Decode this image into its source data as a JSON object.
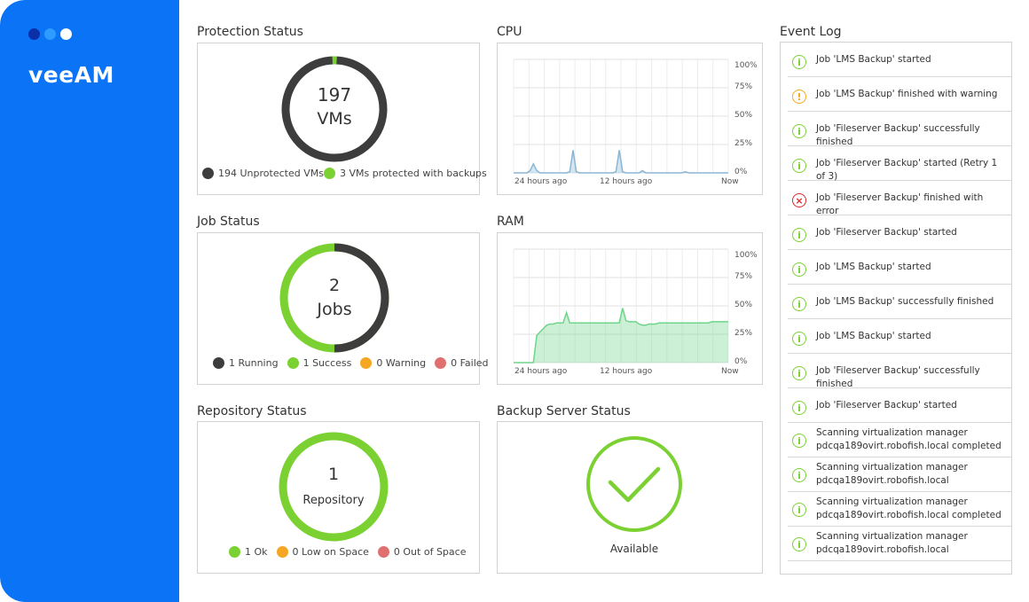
{
  "brand": {
    "logo": "veeAM"
  },
  "window_dots": [
    {
      "name": "dot-dark",
      "color": "#0a2fa8"
    },
    {
      "name": "dot-light",
      "color": "#2d9bff"
    },
    {
      "name": "dot-white",
      "color": "#ffffff"
    }
  ],
  "colors": {
    "accent": "#0b74f6",
    "dark": "#444444",
    "green": "#7bd132",
    "orange": "#f5a623",
    "red": "#e07070",
    "cpu_line": "#8ab6d6",
    "ram_line": "#6ed58a"
  },
  "protection": {
    "title": "Protection Status",
    "count": "197",
    "unit": "VMs",
    "total": 197,
    "protected": 3,
    "legend": [
      {
        "label": "194 Unprotected VMs",
        "color": "#3d3d3d"
      },
      {
        "label": "3 VMs protected with backups",
        "color": "#7bd132"
      }
    ]
  },
  "jobs": {
    "title": "Job Status",
    "count": "2",
    "unit": "Jobs",
    "running": 1,
    "success": 1,
    "legend": [
      {
        "label": "1 Running",
        "color": "#3d3d3d"
      },
      {
        "label": "1 Success",
        "color": "#7bd132"
      },
      {
        "label": "0 Warning",
        "color": "#f5a623"
      },
      {
        "label": "0 Failed",
        "color": "#e07070"
      }
    ]
  },
  "repository": {
    "title": "Repository Status",
    "count": "1",
    "unit": "Repository",
    "legend": [
      {
        "label": "1 Ok",
        "color": "#7bd132"
      },
      {
        "label": "0 Low on Space",
        "color": "#f5a623"
      },
      {
        "label": "0 Out of Space",
        "color": "#e07070"
      }
    ]
  },
  "cpu": {
    "title": "CPU",
    "x_labels": [
      "24 hours ago",
      "12 hours ago",
      "Now"
    ],
    "y_labels": [
      "100%",
      "75%",
      "50%",
      "25%",
      "0%"
    ]
  },
  "ram": {
    "title": "RAM",
    "x_labels": [
      "24 hours ago",
      "12 hours ago",
      "Now"
    ],
    "y_labels": [
      "100%",
      "75%",
      "50%",
      "25%",
      "0%"
    ]
  },
  "server": {
    "title": "Backup Server Status",
    "status": "Available"
  },
  "event_log": {
    "title": "Event Log",
    "events": [
      {
        "type": "info",
        "text": "Job 'LMS Backup' started"
      },
      {
        "type": "warning",
        "text": "Job 'LMS Backup' finished with warning"
      },
      {
        "type": "info",
        "text": "Job 'Fileserver Backup' successfully finished"
      },
      {
        "type": "info",
        "text": "Job 'Fileserver Backup' started (Retry 1 of 3)"
      },
      {
        "type": "error",
        "text": "Job 'Fileserver Backup' finished with error"
      },
      {
        "type": "info",
        "text": "Job 'Fileserver Backup' started"
      },
      {
        "type": "info",
        "text": "Job 'LMS Backup' started"
      },
      {
        "type": "info",
        "text": "Job 'LMS Backup' successfully finished"
      },
      {
        "type": "info",
        "text": "Job 'LMS Backup' started"
      },
      {
        "type": "info",
        "text": "Job 'Fileserver Backup' successfully finished"
      },
      {
        "type": "info",
        "text": "Job 'Fileserver Backup' started"
      },
      {
        "type": "info",
        "text": "Scanning virtualization manager pdcqa189ovirt.robofish.local completed"
      },
      {
        "type": "info",
        "text": "Scanning virtualization manager pdcqa189ovirt.robofish.local"
      },
      {
        "type": "info",
        "text": "Scanning virtualization manager pdcqa189ovirt.robofish.local completed"
      },
      {
        "type": "info",
        "text": "Scanning virtualization manager pdcqa189ovirt.robofish.local"
      }
    ]
  },
  "chart_data": [
    {
      "type": "area",
      "title": "CPU",
      "x_labels": [
        "24 hours ago",
        "12 hours ago",
        "Now"
      ],
      "ylim": [
        0,
        100
      ],
      "y_ticks": [
        "0%",
        "25%",
        "50%",
        "75%",
        "100%"
      ],
      "series": [
        {
          "values": [
            0,
            0,
            0,
            0,
            0,
            2,
            8,
            2,
            0,
            0,
            0,
            0,
            0,
            0,
            0,
            0,
            0,
            1,
            20,
            1,
            0,
            0,
            0,
            0,
            0,
            0,
            0,
            0,
            0,
            0,
            0,
            1,
            20,
            1,
            0,
            0,
            0,
            0,
            0,
            2,
            0,
            0,
            0,
            0,
            0,
            0,
            0,
            0,
            0,
            0,
            0,
            0,
            1,
            0,
            0,
            0,
            0,
            0,
            0,
            0,
            0,
            0,
            0,
            0,
            0,
            0
          ]
        }
      ]
    },
    {
      "type": "area",
      "title": "RAM",
      "x_labels": [
        "24 hours ago",
        "12 hours ago",
        "Now"
      ],
      "ylim": [
        0,
        100
      ],
      "y_ticks": [
        "0%",
        "25%",
        "50%",
        "75%",
        "100%"
      ],
      "series": [
        {
          "values": [
            0,
            0,
            0,
            0,
            0,
            0,
            0,
            24,
            27,
            30,
            33,
            34,
            34,
            35,
            35,
            35,
            44,
            35,
            35,
            35,
            35,
            35,
            35,
            35,
            35,
            35,
            35,
            35,
            35,
            35,
            35,
            35,
            35,
            48,
            37,
            36,
            36,
            36,
            34,
            33,
            33,
            34,
            34,
            34,
            35,
            35,
            35,
            35,
            35,
            35,
            35,
            35,
            35,
            35,
            35,
            35,
            35,
            35,
            35,
            35,
            36,
            36,
            36,
            36,
            36,
            36
          ]
        }
      ]
    }
  ]
}
